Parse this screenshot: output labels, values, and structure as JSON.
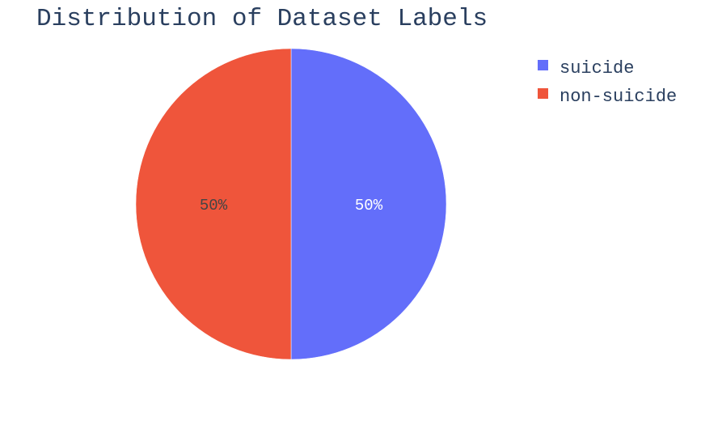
{
  "chart_data": {
    "type": "pie",
    "title": "Distribution of Dataset Labels",
    "labels": [
      "suicide",
      "non-suicide"
    ],
    "values": [
      50,
      50
    ],
    "percent_labels": [
      "50%",
      "50%"
    ],
    "colors": [
      "#636efa",
      "#ef553b"
    ],
    "label_colors": [
      "#ffffff",
      "#444444"
    ],
    "legend_position": "top-right"
  }
}
